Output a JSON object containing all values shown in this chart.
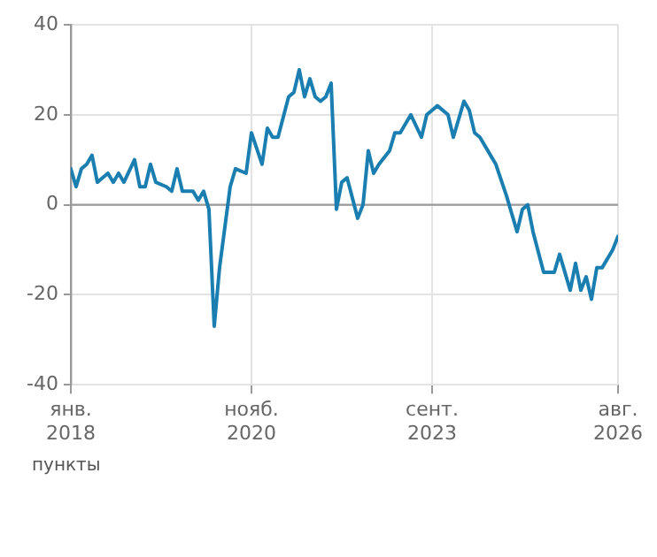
{
  "chart_data": {
    "type": "line",
    "annotations": [
      "пункты"
    ],
    "x": [
      "2018-01",
      "2018-02",
      "2018-03",
      "2018-04",
      "2018-05",
      "2018-06",
      "2018-07",
      "2018-08",
      "2018-09",
      "2018-10",
      "2018-11",
      "2019-01",
      "2019-02",
      "2019-03",
      "2019-04",
      "2019-05",
      "2019-07",
      "2019-08",
      "2019-09",
      "2019-10",
      "2019-12",
      "2020-01",
      "2020-02",
      "2020-03",
      "2020-04",
      "2020-05",
      "2020-07",
      "2020-08",
      "2020-10",
      "2020-11",
      "2021-01",
      "2021-02",
      "2021-03",
      "2021-04",
      "2021-06",
      "2021-07",
      "2021-08",
      "2021-09",
      "2021-10",
      "2021-11",
      "2021-12",
      "2022-01",
      "2022-02",
      "2022-03",
      "2022-04",
      "2022-05",
      "2022-07",
      "2022-08",
      "2022-09",
      "2022-10",
      "2022-11",
      "2023-01",
      "2023-02",
      "2023-03",
      "2023-05",
      "2023-07",
      "2023-08",
      "2023-09",
      "2023-10",
      "2023-12",
      "2024-01",
      "2024-03",
      "2024-04",
      "2024-05",
      "2024-06",
      "2024-08",
      "2024-09",
      "2024-11",
      "2025-01",
      "2025-02",
      "2025-03",
      "2025-04",
      "2025-06",
      "2025-08",
      "2025-09",
      "2025-11",
      "2025-12",
      "2026-01",
      "2026-02",
      "2026-03",
      "2026-04",
      "2026-05",
      "2026-07",
      "2026-08"
    ],
    "series": [
      {
        "color": "#1a7fb0",
        "values": [
          8,
          4,
          8,
          9,
          11,
          5,
          6,
          7,
          5,
          7,
          5,
          10,
          4,
          4,
          9,
          5,
          4,
          3,
          8,
          3,
          3,
          1,
          3,
          -1,
          -27,
          -14,
          4,
          8,
          7,
          16,
          9,
          17,
          15,
          15,
          24,
          25,
          30,
          24,
          28,
          24,
          23,
          24,
          27,
          -1,
          5,
          6,
          -3,
          0,
          12,
          7,
          9,
          12,
          16,
          16,
          20,
          15,
          20,
          21,
          22,
          20,
          15,
          23,
          21,
          16,
          15,
          11,
          9,
          2,
          -6,
          -1,
          0,
          -6,
          -15,
          -15,
          -11,
          -19,
          -13,
          -19,
          -16,
          -21,
          -14,
          -14,
          -10,
          -7
        ]
      }
    ],
    "xlim": [
      "2018-01",
      "2026-08"
    ],
    "xticks": [
      {
        "value": "2018-01",
        "label": "янв. 2018"
      },
      {
        "value": "2020-11",
        "label": "нояб. 2020"
      },
      {
        "value": "2023-09",
        "label": "сент. 2023"
      },
      {
        "value": "2026-08",
        "label": "авг. 2026"
      }
    ],
    "ylim": [
      -40,
      40
    ],
    "yticks": [
      -40,
      -20,
      0,
      20,
      40
    ],
    "ref_lines": [
      {
        "axis": "y",
        "value": 0,
        "color": "#9a9a9a"
      }
    ],
    "grid": true,
    "legend": false,
    "marker": "none",
    "line_style": "solid"
  }
}
